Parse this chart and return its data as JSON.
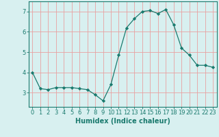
{
  "x": [
    0,
    1,
    2,
    3,
    4,
    5,
    6,
    7,
    8,
    9,
    10,
    11,
    12,
    13,
    14,
    15,
    16,
    17,
    18,
    19,
    20,
    21,
    22,
    23
  ],
  "y": [
    4.0,
    3.2,
    3.15,
    3.25,
    3.25,
    3.25,
    3.2,
    3.15,
    2.9,
    2.6,
    3.4,
    4.85,
    6.2,
    6.65,
    7.0,
    7.05,
    6.9,
    7.1,
    6.35,
    5.2,
    4.85,
    4.35,
    4.35,
    4.25
  ],
  "line_color": "#1a7a6e",
  "marker": "D",
  "marker_size": 2.2,
  "bg_color": "#d8f0f0",
  "grid_color": "#e8a0a0",
  "xlabel": "Humidex (Indice chaleur)",
  "ylim": [
    2.3,
    7.5
  ],
  "xlim": [
    -0.5,
    23.5
  ],
  "yticks": [
    3,
    4,
    5,
    6,
    7
  ],
  "xticks": [
    0,
    1,
    2,
    3,
    4,
    5,
    6,
    7,
    8,
    9,
    10,
    11,
    12,
    13,
    14,
    15,
    16,
    17,
    18,
    19,
    20,
    21,
    22,
    23
  ],
  "tick_color": "#1a7a6e",
  "label_fontsize": 7,
  "tick_fontsize": 6
}
